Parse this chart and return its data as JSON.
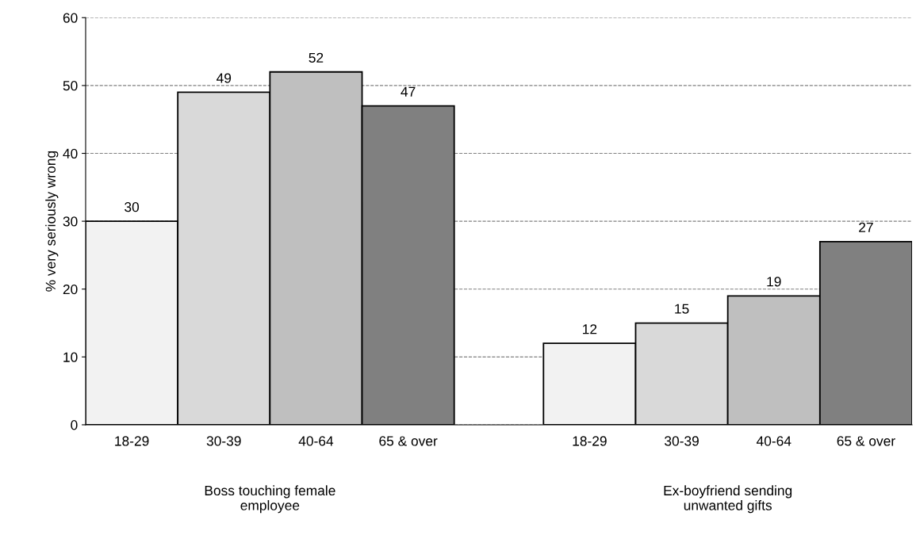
{
  "chart_data": {
    "type": "bar",
    "ylabel": "% very seriously wrong",
    "categories": [
      "Boss touching female employee",
      "Ex-boyfriend sending unwanted gifts"
    ],
    "series": [
      {
        "name": "18-29",
        "color": "#f2f2f2",
        "values": [
          30,
          12
        ]
      },
      {
        "name": "30-39",
        "color": "#d9d9d9",
        "values": [
          49,
          15
        ]
      },
      {
        "name": "40-64",
        "color": "#bfbfbf",
        "values": [
          52,
          19
        ]
      },
      {
        "name": "65 & over",
        "color": "#808080",
        "values": [
          47,
          27
        ]
      }
    ],
    "ylim": [
      0,
      60
    ],
    "yticks": [
      0,
      10,
      20,
      30,
      40,
      50,
      60
    ],
    "grid": "y",
    "data_labels": true,
    "legend": false
  }
}
